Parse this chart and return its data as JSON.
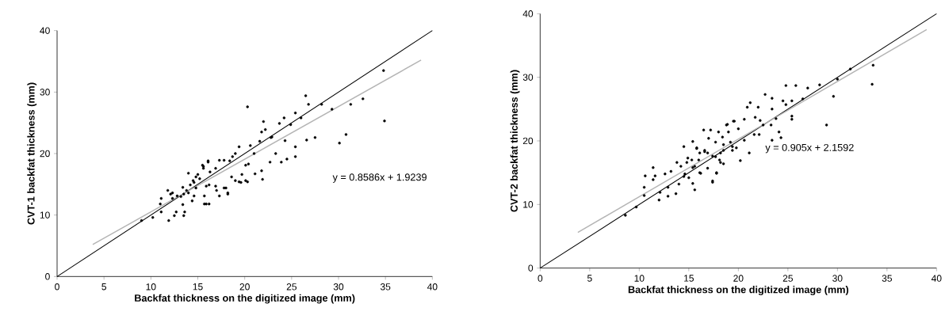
{
  "chart_data": [
    {
      "type": "scatter",
      "marker": "circle",
      "xlabel": "Backfat thickness on the digitized image (mm)",
      "ylabel": "CVT-1 backfat thickness (mm)",
      "annotations": [
        "y = 0.8586x + 1.9239"
      ],
      "xlim": [
        0,
        40
      ],
      "ylim": [
        0,
        40
      ],
      "xticks": [
        0,
        5,
        10,
        15,
        20,
        25,
        30,
        35,
        40
      ],
      "yticks": [
        0,
        10,
        20,
        30,
        40
      ],
      "series": [
        {
          "color": "#000000",
          "x": [
            34.8,
            34.9,
            30.8,
            30.1,
            32.6,
            31.3,
            29.3,
            26.5,
            26.8,
            28.2,
            27.5,
            26.6,
            25.4,
            25.4,
            25.4,
            20.3,
            24.2,
            24.9,
            26.0,
            23.7,
            21.8,
            22.2,
            22.9,
            24.3,
            23.3,
            22.7,
            23.9,
            24.5,
            21.9,
            21.1,
            20.3,
            19.6,
            20.4,
            21.0,
            20.6,
            21.6,
            19.4,
            19.0,
            18.7,
            18.4,
            17.8,
            17.3,
            16.9,
            16.3,
            16.1,
            15.6,
            15.0,
            14.8,
            14.6,
            14.2,
            13.8,
            13.5,
            16.2,
            17.0,
            18.0,
            18.2,
            17.3,
            15.9,
            16.2,
            13.6,
            19.7,
            18.6,
            19.4,
            20.1,
            21.8,
            22.0,
            22.8,
            11.9,
            10.2,
            9.0,
            11.1,
            11.0,
            11.1,
            11.8,
            12.1,
            12.5,
            12.7,
            13.5,
            13.4,
            13.2,
            12.3,
            12.8,
            14.0,
            13.4,
            14.4,
            14.6,
            14.8,
            14.5,
            15.2,
            15.7,
            15.7,
            15.9,
            15.5,
            16.1,
            15.6,
            18.2,
            17.8,
            19.0,
            20.1,
            16.9,
            14.0,
            12.3
          ],
          "values": [
            33.5,
            25.3,
            23.1,
            21.7,
            28.9,
            28.0,
            27.2,
            29.4,
            28.0,
            28.0,
            22.6,
            22.2,
            19.5,
            21.1,
            26.6,
            27.6,
            25.8,
            24.7,
            25.8,
            24.9,
            23.5,
            23.9,
            22.7,
            22.1,
            20.0,
            18.6,
            18.6,
            19.1,
            15.8,
            16.7,
            15.4,
            15.3,
            18.3,
            20.0,
            21.3,
            22.0,
            21.1,
            20.0,
            19.5,
            18.8,
            18.9,
            18.9,
            17.6,
            17.0,
            18.8,
            17.9,
            16.6,
            16.2,
            15.3,
            14.9,
            14.0,
            13.4,
            14.9,
            14.0,
            14.4,
            13.4,
            13.1,
            11.8,
            11.8,
            10.5,
            16.6,
            16.2,
            15.4,
            18.1,
            17.2,
            25.2,
            22.6,
            9.1,
            9.6,
            9.1,
            10.5,
            11.8,
            12.7,
            14.0,
            13.4,
            9.9,
            10.5,
            9.9,
            11.7,
            13.0,
            12.7,
            13.1,
            16.8,
            14.5,
            12.3,
            13.1,
            14.4,
            15.6,
            15.9,
            11.8,
            13.1,
            14.7,
            18.1,
            18.6,
            17.6,
            13.6,
            14.4,
            15.6,
            15.6,
            14.7,
            13.6,
            13.6
          ]
        },
        {
          "type": "line",
          "marker": "none",
          "color": "#000000",
          "x": [
            0,
            40
          ],
          "values": [
            0,
            40
          ]
        },
        {
          "type": "line",
          "marker": "none",
          "color": "#b4b4b4",
          "x": [
            3.8,
            38.8
          ],
          "values": [
            5.2,
            35.2
          ]
        }
      ]
    },
    {
      "type": "scatter",
      "marker": "circle",
      "xlabel": "Backfat thickness on the digitized image (mm)",
      "ylabel": "CVT-2 backfat thickness (mm)",
      "annotations": [
        "y = 0.905x + 2.1592"
      ],
      "xlim": [
        0,
        40
      ],
      "ylim": [
        0,
        40
      ],
      "xticks": [
        0,
        5,
        10,
        15,
        20,
        25,
        30,
        35,
        40
      ],
      "yticks": [
        0,
        10,
        20,
        30,
        40
      ],
      "series": [
        {
          "color": "#000000",
          "x": [
            33.6,
            33.5,
            31.3,
            30.0,
            29.6,
            28.9,
            28.2,
            27.0,
            25.8,
            24.8,
            26.5,
            25.4,
            24.5,
            25.4,
            25.4,
            24.8,
            24.3,
            23.4,
            24.1,
            23.3,
            23.8,
            23.4,
            23.4,
            22.7,
            22.0,
            21.2,
            20.9,
            22.2,
            21.7,
            22.5,
            22.1,
            21.6,
            21.1,
            20.2,
            20.6,
            20.0,
            20.6,
            19.5,
            18.9,
            19.0,
            18.4,
            18.0,
            17.2,
            16.5,
            17.0,
            17.7,
            18.5,
            19.2,
            19.8,
            19.4,
            18.2,
            17.4,
            16.9,
            16.6,
            16.1,
            15.4,
            15.8,
            15.3,
            14.8,
            14.5,
            18.1,
            18.5,
            17.8,
            16.2,
            17.4,
            16.9,
            15.4,
            15.6,
            15.4,
            14.6,
            8.6,
            9.7,
            10.5,
            10.5,
            10.6,
            11.4,
            11.6,
            11.4,
            12.0,
            12.1,
            12.9,
            12.6,
            12.9,
            13.2,
            13.7,
            14.0,
            13.8,
            14.2,
            14.5,
            15.0,
            14.9,
            15.6,
            15.8,
            16.1,
            16.0,
            16.6,
            17.4,
            17.8,
            17.7,
            18.2,
            18.5,
            18.8,
            19.6,
            19.4
          ],
          "values": [
            31.9,
            28.9,
            31.3,
            29.7,
            27.0,
            22.5,
            28.8,
            28.3,
            28.7,
            28.7,
            26.6,
            26.3,
            26.3,
            23.9,
            23.4,
            25.7,
            20.5,
            20.1,
            21.4,
            22.5,
            23.5,
            25.0,
            26.7,
            27.3,
            25.3,
            26.0,
            25.3,
            23.2,
            23.7,
            22.5,
            21.0,
            21.0,
            18.1,
            16.9,
            20.1,
            21.9,
            23.4,
            23.1,
            22.6,
            21.4,
            20.6,
            21.4,
            21.7,
            21.7,
            20.4,
            19.8,
            19.4,
            19.8,
            18.9,
            18.5,
            18.1,
            17.6,
            18.1,
            18.5,
            18.1,
            19.9,
            18.9,
            17.0,
            16.6,
            19.1,
            17.0,
            16.4,
            14.9,
            14.9,
            13.7,
            15.7,
            15.8,
            12.3,
            13.3,
            14.8,
            8.3,
            9.6,
            11.4,
            12.7,
            14.5,
            15.8,
            14.5,
            13.9,
            10.7,
            11.9,
            11.3,
            14.8,
            12.7,
            15.2,
            11.7,
            13.2,
            16.6,
            16.0,
            14.4,
            14.2,
            17.3,
            16.0,
            18.8,
            15.0,
            17.0,
            18.3,
            13.5,
            15.0,
            17.5,
            16.6,
            18.5,
            22.5,
            23.1,
            19.1
          ]
        },
        {
          "type": "line",
          "marker": "none",
          "color": "#000000",
          "x": [
            0,
            40
          ],
          "values": [
            0,
            40
          ]
        },
        {
          "type": "line",
          "marker": "none",
          "color": "#b4b4b4",
          "x": [
            3.8,
            39.0
          ],
          "values": [
            5.6,
            37.5
          ]
        }
      ]
    }
  ]
}
